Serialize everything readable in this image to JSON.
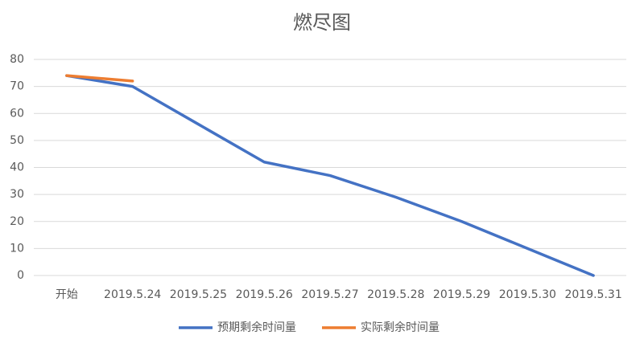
{
  "chart_data": {
    "type": "line",
    "title": "燃尽图",
    "categories": [
      "开始",
      "2019.5.24",
      "2019.5.25",
      "2019.5.26",
      "2019.5.27",
      "2019.5.28",
      "2019.5.29",
      "2019.5.30",
      "2019.5.31"
    ],
    "series": [
      {
        "name": "预期剩余时间量",
        "color": "#4472c4",
        "values": [
          74,
          70,
          56,
          42,
          37,
          29,
          20,
          10,
          0
        ]
      },
      {
        "name": "实际剩余时间量",
        "color": "#ed7d31",
        "values": [
          74,
          72,
          null,
          null,
          null,
          null,
          null,
          null,
          null
        ]
      }
    ],
    "ylim": [
      0,
      80
    ],
    "yticks": [
      0,
      10,
      20,
      30,
      40,
      50,
      60,
      70,
      80
    ],
    "grid": true,
    "legend": "bottom"
  }
}
